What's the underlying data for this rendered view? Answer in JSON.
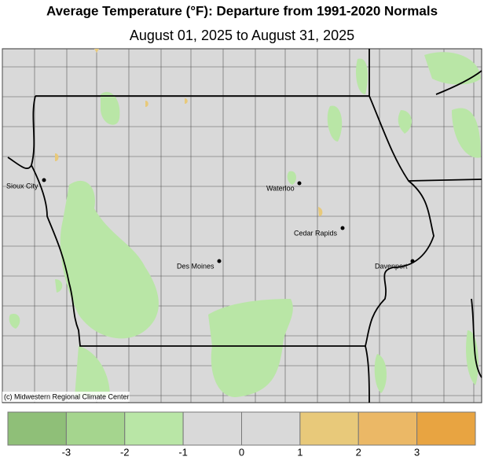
{
  "header": {
    "title": "Average Temperature (°F): Departure from 1991-2020 Normals",
    "subtitle": "August 01, 2025 to August 31, 2025"
  },
  "cities": [
    "Sioux City",
    "Waterloo",
    "Cedar Rapids",
    "Des Moines",
    "Davenport"
  ],
  "credit": "(c) Midwestern Regional Climate Center",
  "legend": {
    "colors": [
      "#8fbf78",
      "#a5d58e",
      "#b9e6a6",
      "#d9d9d9",
      "#d9d9d9",
      "#e8c97a",
      "#ebb866",
      "#e8a441"
    ],
    "ticks": [
      -3,
      -2,
      -1,
      0,
      1,
      2,
      3
    ]
  }
}
